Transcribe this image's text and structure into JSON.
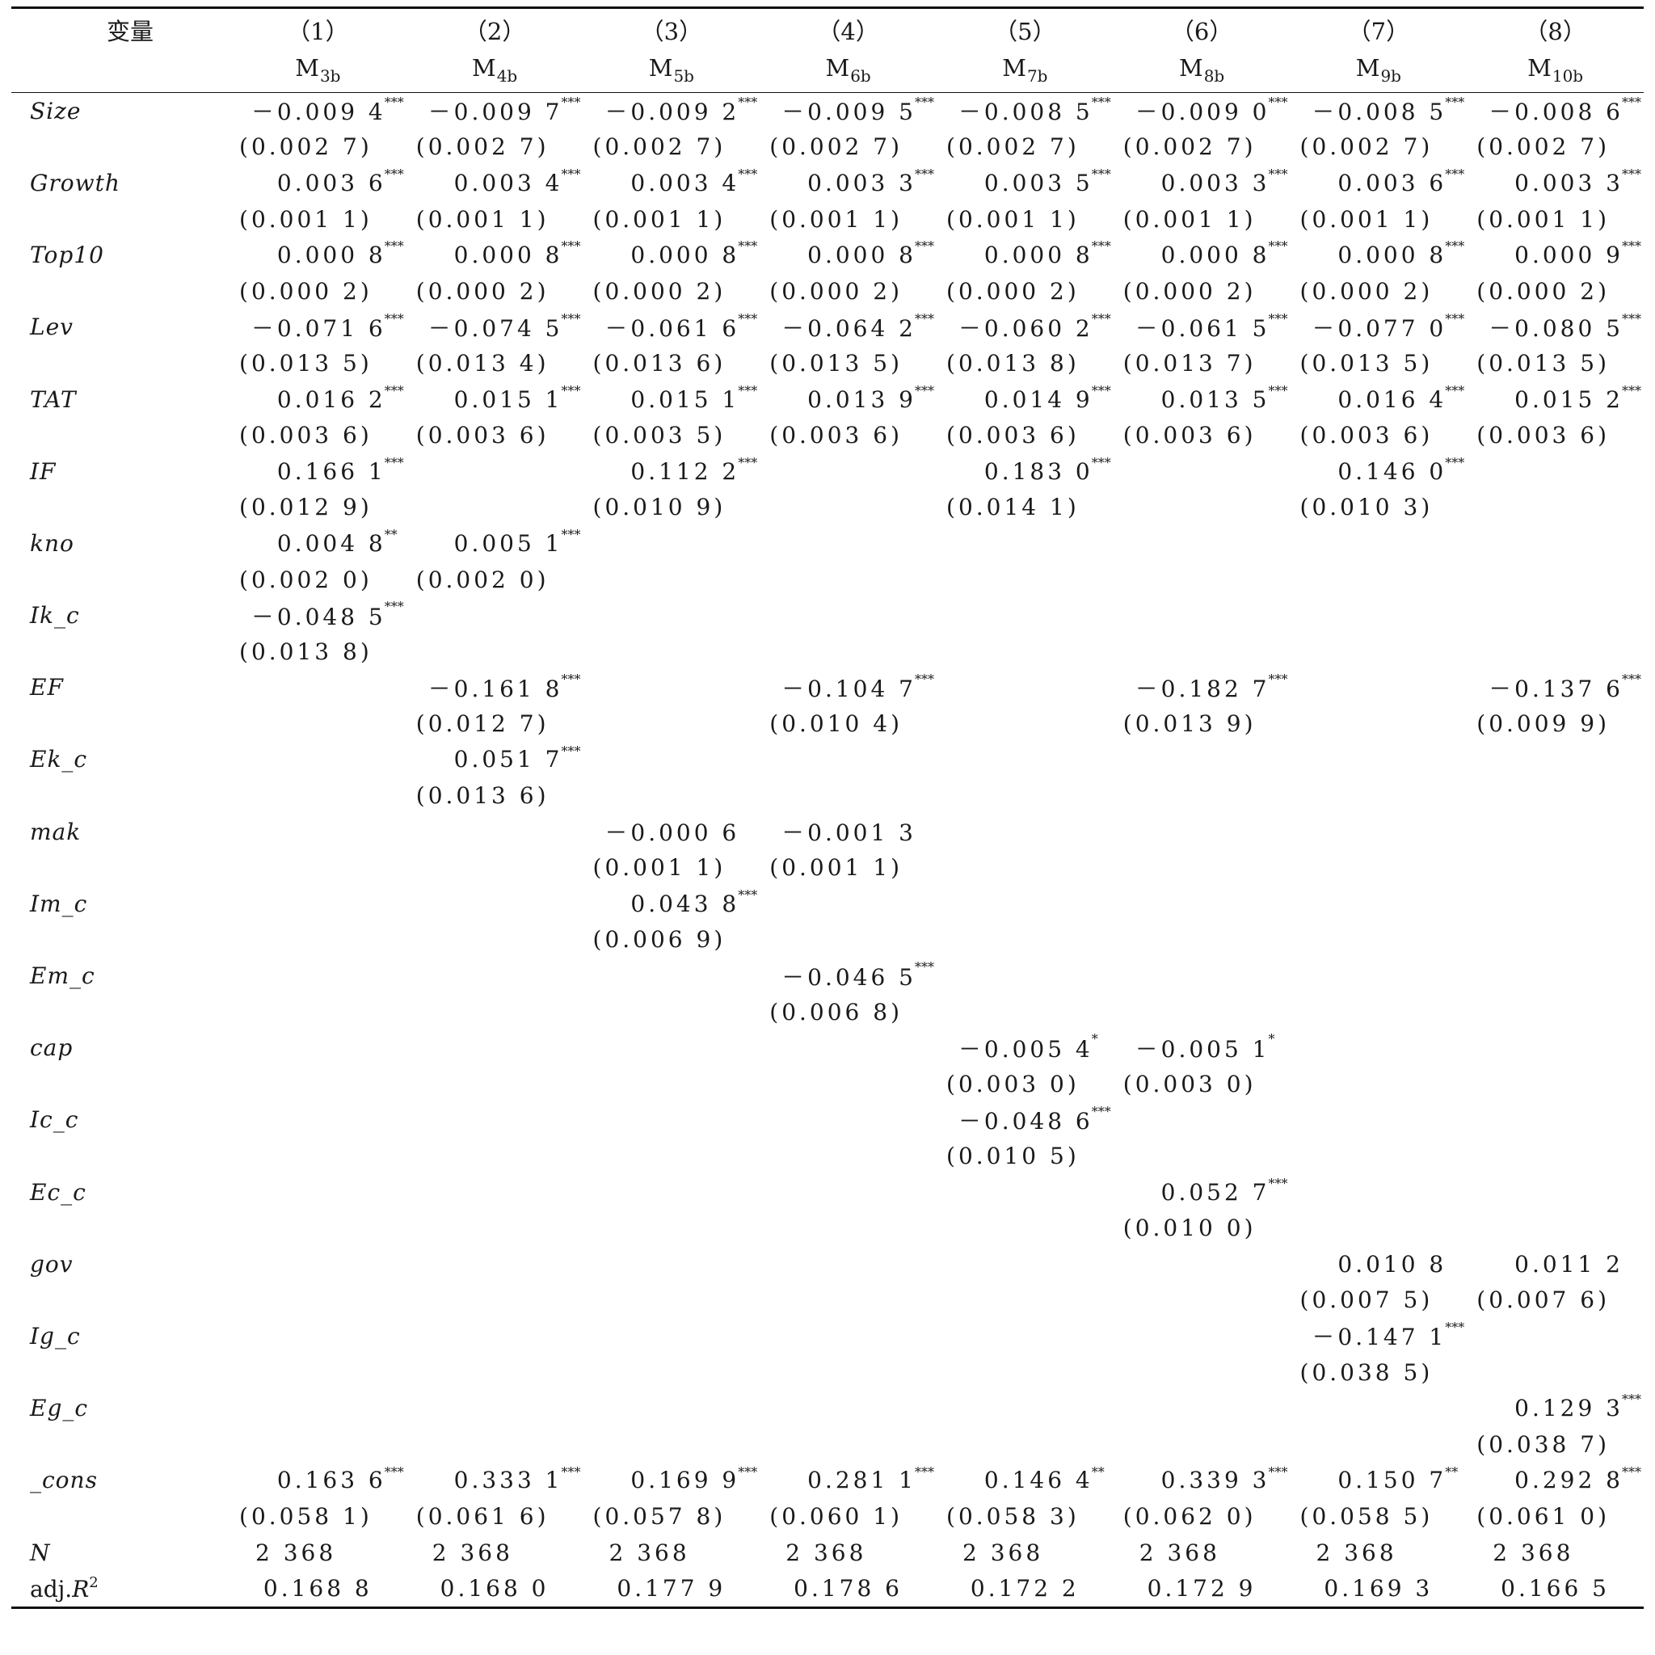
{
  "header": {
    "var_label": "变量",
    "columns": [
      {
        "num": "（1）",
        "model": "M",
        "sub": "3b"
      },
      {
        "num": "（2）",
        "model": "M",
        "sub": "4b"
      },
      {
        "num": "（3）",
        "model": "M",
        "sub": "5b"
      },
      {
        "num": "（4）",
        "model": "M",
        "sub": "6b"
      },
      {
        "num": "（5）",
        "model": "M",
        "sub": "7b"
      },
      {
        "num": "（6）",
        "model": "M",
        "sub": "8b"
      },
      {
        "num": "（7）",
        "model": "M",
        "sub": "9b"
      },
      {
        "num": "（8）",
        "model": "M",
        "sub": "10b"
      }
    ]
  },
  "rows": [
    {
      "name": "Size",
      "coef": [
        "－0.009 4",
        "－0.009 7",
        "－0.009 2",
        "－0.009 5",
        "－0.008 5",
        "－0.009 0",
        "－0.008 5",
        "－0.008 6"
      ],
      "stars": [
        "***",
        "***",
        "***",
        "***",
        "***",
        "***",
        "***",
        "***"
      ],
      "se": [
        "(0.002 7)",
        "(0.002 7)",
        "(0.002 7)",
        "(0.002 7)",
        "(0.002 7)",
        "(0.002 7)",
        "(0.002 7)",
        "(0.002 7)"
      ]
    },
    {
      "name": "Growth",
      "coef": [
        "0.003 6",
        "0.003 4",
        "0.003 4",
        "0.003 3",
        "0.003 5",
        "0.003 3",
        "0.003 6",
        "0.003 3"
      ],
      "stars": [
        "***",
        "***",
        "***",
        "***",
        "***",
        "***",
        "***",
        "***"
      ],
      "se": [
        "(0.001 1)",
        "(0.001 1)",
        "(0.001 1)",
        "(0.001 1)",
        "(0.001 1)",
        "(0.001 1)",
        "(0.001 1)",
        "(0.001 1)"
      ]
    },
    {
      "name": "Top10",
      "coef": [
        "0.000 8",
        "0.000 8",
        "0.000 8",
        "0.000 8",
        "0.000 8",
        "0.000 8",
        "0.000 8",
        "0.000 9"
      ],
      "stars": [
        "***",
        "***",
        "***",
        "***",
        "***",
        "***",
        "***",
        "***"
      ],
      "se": [
        "(0.000 2)",
        "(0.000 2)",
        "(0.000 2)",
        "(0.000 2)",
        "(0.000 2)",
        "(0.000 2)",
        "(0.000 2)",
        "(0.000 2)"
      ]
    },
    {
      "name": "Lev",
      "coef": [
        "－0.071 6",
        "－0.074 5",
        "－0.061 6",
        "－0.064 2",
        "－0.060 2",
        "－0.061 5",
        "－0.077 0",
        "－0.080 5"
      ],
      "stars": [
        "***",
        "***",
        "***",
        "***",
        "***",
        "***",
        "***",
        "***"
      ],
      "se": [
        "(0.013 5)",
        "(0.013 4)",
        "(0.013 6)",
        "(0.013 5)",
        "(0.013 8)",
        "(0.013 7)",
        "(0.013 5)",
        "(0.013 5)"
      ]
    },
    {
      "name": "TAT",
      "coef": [
        "0.016 2",
        "0.015 1",
        "0.015 1",
        "0.013 9",
        "0.014 9",
        "0.013 5",
        "0.016 4",
        "0.015 2"
      ],
      "stars": [
        "***",
        "***",
        "***",
        "***",
        "***",
        "***",
        "***",
        "***"
      ],
      "se": [
        "(0.003 6)",
        "(0.003 6)",
        "(0.003 5)",
        "(0.003 6)",
        "(0.003 6)",
        "(0.003 6)",
        "(0.003 6)",
        "(0.003 6)"
      ]
    },
    {
      "name": "IF",
      "coef": [
        "0.166 1",
        "",
        "0.112 2",
        "",
        "0.183 0",
        "",
        "0.146 0",
        ""
      ],
      "stars": [
        "***",
        "",
        "***",
        "",
        "***",
        "",
        "***",
        ""
      ],
      "se": [
        "(0.012 9)",
        "",
        "(0.010 9)",
        "",
        "(0.014 1)",
        "",
        "(0.010 3)",
        ""
      ]
    },
    {
      "name": "kno",
      "coef": [
        "0.004 8",
        "0.005 1",
        "",
        "",
        "",
        "",
        "",
        ""
      ],
      "stars": [
        "**",
        "***",
        "",
        "",
        "",
        "",
        "",
        ""
      ],
      "se": [
        "(0.002 0)",
        "(0.002 0)",
        "",
        "",
        "",
        "",
        "",
        ""
      ]
    },
    {
      "name": "Ik_c",
      "coef": [
        "－0.048 5",
        "",
        "",
        "",
        "",
        "",
        "",
        ""
      ],
      "stars": [
        "***",
        "",
        "",
        "",
        "",
        "",
        "",
        ""
      ],
      "se": [
        "(0.013 8)",
        "",
        "",
        "",
        "",
        "",
        "",
        ""
      ]
    },
    {
      "name": "EF",
      "coef": [
        "",
        "－0.161 8",
        "",
        "－0.104 7",
        "",
        "－0.182 7",
        "",
        "－0.137 6"
      ],
      "stars": [
        "",
        "***",
        "",
        "***",
        "",
        "***",
        "",
        "***"
      ],
      "se": [
        "",
        "(0.012 7)",
        "",
        "(0.010 4)",
        "",
        "(0.013 9)",
        "",
        "(0.009 9)"
      ]
    },
    {
      "name": "Ek_c",
      "coef": [
        "",
        "0.051 7",
        "",
        "",
        "",
        "",
        "",
        ""
      ],
      "stars": [
        "",
        "***",
        "",
        "",
        "",
        "",
        "",
        ""
      ],
      "se": [
        "",
        "(0.013 6)",
        "",
        "",
        "",
        "",
        "",
        ""
      ]
    },
    {
      "name": "mak",
      "coef": [
        "",
        "",
        "－0.000 6",
        "－0.001 3",
        "",
        "",
        "",
        ""
      ],
      "stars": [
        "",
        "",
        "",
        "",
        "",
        "",
        "",
        ""
      ],
      "se": [
        "",
        "",
        "(0.001 1)",
        "(0.001 1)",
        "",
        "",
        "",
        ""
      ]
    },
    {
      "name": "Im_c",
      "coef": [
        "",
        "",
        "0.043 8",
        "",
        "",
        "",
        "",
        ""
      ],
      "stars": [
        "",
        "",
        "***",
        "",
        "",
        "",
        "",
        ""
      ],
      "se": [
        "",
        "",
        "(0.006 9)",
        "",
        "",
        "",
        "",
        ""
      ]
    },
    {
      "name": "Em_c",
      "coef": [
        "",
        "",
        "",
        "－0.046 5",
        "",
        "",
        "",
        ""
      ],
      "stars": [
        "",
        "",
        "",
        "***",
        "",
        "",
        "",
        ""
      ],
      "se": [
        "",
        "",
        "",
        "(0.006 8)",
        "",
        "",
        "",
        ""
      ]
    },
    {
      "name": "cap",
      "coef": [
        "",
        "",
        "",
        "",
        "－0.005 4",
        "－0.005 1",
        "",
        ""
      ],
      "stars": [
        "",
        "",
        "",
        "",
        "*",
        "*",
        "",
        ""
      ],
      "se": [
        "",
        "",
        "",
        "",
        "(0.003 0)",
        "(0.003 0)",
        "",
        ""
      ]
    },
    {
      "name": "Ic_c",
      "coef": [
        "",
        "",
        "",
        "",
        "－0.048 6",
        "",
        "",
        ""
      ],
      "stars": [
        "",
        "",
        "",
        "",
        "***",
        "",
        "",
        ""
      ],
      "se": [
        "",
        "",
        "",
        "",
        "(0.010 5)",
        "",
        "",
        ""
      ]
    },
    {
      "name": "Ec_c",
      "coef": [
        "",
        "",
        "",
        "",
        "",
        "0.052 7",
        "",
        ""
      ],
      "stars": [
        "",
        "",
        "",
        "",
        "",
        "***",
        "",
        ""
      ],
      "se": [
        "",
        "",
        "",
        "",
        "",
        "(0.010 0)",
        "",
        ""
      ]
    },
    {
      "name": "gov",
      "coef": [
        "",
        "",
        "",
        "",
        "",
        "",
        "0.010 8",
        "0.011 2"
      ],
      "stars": [
        "",
        "",
        "",
        "",
        "",
        "",
        "",
        ""
      ],
      "se": [
        "",
        "",
        "",
        "",
        "",
        "",
        "(0.007 5)",
        "(0.007 6)"
      ]
    },
    {
      "name": "Ig_c",
      "coef": [
        "",
        "",
        "",
        "",
        "",
        "",
        "－0.147 1",
        ""
      ],
      "stars": [
        "",
        "",
        "",
        "",
        "",
        "",
        "***",
        ""
      ],
      "se": [
        "",
        "",
        "",
        "",
        "",
        "",
        "(0.038 5)",
        ""
      ]
    },
    {
      "name": "Eg_c",
      "coef": [
        "",
        "",
        "",
        "",
        "",
        "",
        "",
        "0.129 3"
      ],
      "stars": [
        "",
        "",
        "",
        "",
        "",
        "",
        "",
        "***"
      ],
      "se": [
        "",
        "",
        "",
        "",
        "",
        "",
        "",
        "(0.038 7)"
      ]
    },
    {
      "name": "_cons",
      "coef": [
        "0.163 6",
        "0.333 1",
        "0.169 9",
        "0.281 1",
        "0.146 4",
        "0.339 3",
        "0.150 7",
        "0.292 8"
      ],
      "stars": [
        "***",
        "***",
        "***",
        "***",
        "**",
        "***",
        "**",
        "***"
      ],
      "se": [
        "(0.058 1)",
        "(0.061 6)",
        "(0.057 8)",
        "(0.060 1)",
        "(0.058 3)",
        "(0.062 0)",
        "(0.058 5)",
        "(0.061 0)"
      ]
    }
  ],
  "n_row": {
    "label": "N",
    "values": [
      "2 368",
      "2 368",
      "2 368",
      "2 368",
      "2 368",
      "2 368",
      "2 368",
      "2 368"
    ]
  },
  "r2_row": {
    "label_prefix": "adj.",
    "label_R": "R",
    "label_sup": "2",
    "values": [
      "0.168 8",
      "0.168 0",
      "0.177 9",
      "0.178 6",
      "0.172 2",
      "0.172 9",
      "0.169 3",
      "0.166 5"
    ]
  }
}
